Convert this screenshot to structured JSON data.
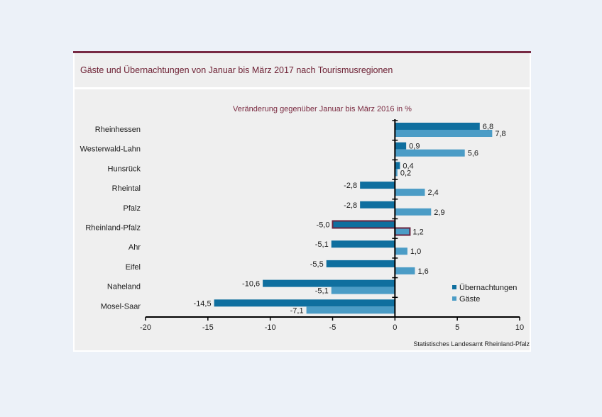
{
  "header": {
    "title": "Gäste und Übernachtungen von Januar bis März 2017 nach Tourismusregionen"
  },
  "colors": {
    "accent": "#772a43",
    "series_uebernachtungen": "#0f6f9f",
    "series_gaeste": "#4b9cc6",
    "highlight_border": "#6b2440",
    "panel_bg": "#efefef",
    "page_bg": "#ecf1f8"
  },
  "chart_data": {
    "type": "bar",
    "orientation": "horizontal",
    "title": "Gäste und Übernachtungen von Januar bis März 2017 nach Tourismusregionen",
    "subtitle": "Veränderung gegenüber Januar bis März 2016 in %",
    "categories": [
      "Rheinhessen",
      "Westerwald-Lahn",
      "Hunsrück",
      "Rheintal",
      "Pfalz",
      "Rheinland-Pfalz",
      "Ahr",
      "Eifel",
      "Naheland",
      "Mosel-Saar"
    ],
    "series": [
      {
        "name": "Übernachtungen",
        "values": [
          6.8,
          0.9,
          0.4,
          -2.8,
          -2.8,
          -5.0,
          -5.1,
          -5.5,
          -10.6,
          -14.5
        ],
        "labels": [
          "6,8",
          "0,9",
          "0,4",
          "-2,8",
          "-2,8",
          "-5,0",
          "-5,1",
          "-5,5",
          "-10,6",
          "-14,5"
        ]
      },
      {
        "name": "Gäste",
        "values": [
          7.8,
          5.6,
          0.2,
          2.4,
          2.9,
          1.2,
          1.0,
          1.6,
          -5.1,
          -7.1
        ],
        "labels": [
          "7,8",
          "5,6",
          "0,2",
          "2,4",
          "2,9",
          "1,2",
          "1,0",
          "1,6",
          "-5,1",
          "-7,1"
        ]
      }
    ],
    "highlighted_category": "Rheinland-Pfalz",
    "xlabel": "",
    "ylabel": "",
    "xlim": [
      -20,
      10
    ],
    "xticks": [
      -20,
      -15,
      -10,
      -5,
      0,
      5,
      10
    ],
    "xtick_labels": [
      "-20",
      "-15",
      "-10",
      "-5",
      "0",
      "5",
      "10"
    ],
    "grid": false,
    "legend": {
      "position": "bottom-right",
      "entries": [
        "Übernachtungen",
        "Gäste"
      ]
    },
    "source": "Statistisches Landesamt Rheinland-Pfalz"
  }
}
